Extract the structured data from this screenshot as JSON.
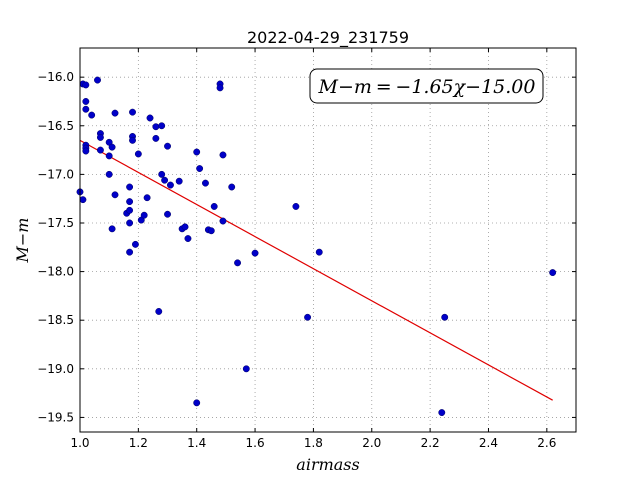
{
  "chart_data": {
    "type": "scatter",
    "title": "2022-04-29_231759",
    "xlabel": "airmass",
    "ylabel": "M−m",
    "xlim": [
      1.0,
      2.7
    ],
    "ylim": [
      -19.65,
      -15.7
    ],
    "y_inverted": true,
    "x_ticks": [
      1.0,
      1.2,
      1.4,
      1.6,
      1.8,
      2.0,
      2.2,
      2.4,
      2.6
    ],
    "x_tick_labels": [
      "1.0",
      "1.2",
      "1.4",
      "1.6",
      "1.8",
      "2.0",
      "2.2",
      "2.4",
      "2.6"
    ],
    "y_ticks": [
      -16.0,
      -16.5,
      -17.0,
      -17.5,
      -18.0,
      -18.5,
      -19.0,
      -19.5
    ],
    "y_tick_labels": [
      "−16.0",
      "−16.5",
      "−17.0",
      "−17.5",
      "−18.0",
      "−18.5",
      "−19.0",
      "−19.5"
    ],
    "grid": true,
    "annotation": "M−m = −1.65χ−15.00",
    "annotation_placement": "top-right",
    "colors": {
      "points": "#0000c8",
      "fit_line": "#e00000",
      "grid": "#999999"
    },
    "fit_line": {
      "slope": -1.65,
      "intercept": -15.0,
      "x_range": [
        1.0,
        2.62
      ]
    },
    "points": [
      {
        "x": 1.0,
        "y": -17.18
      },
      {
        "x": 1.01,
        "y": -17.26
      },
      {
        "x": 1.01,
        "y": -16.07
      },
      {
        "x": 1.02,
        "y": -16.08
      },
      {
        "x": 1.02,
        "y": -16.25
      },
      {
        "x": 1.02,
        "y": -16.33
      },
      {
        "x": 1.02,
        "y": -16.7
      },
      {
        "x": 1.02,
        "y": -16.73
      },
      {
        "x": 1.02,
        "y": -16.76
      },
      {
        "x": 1.04,
        "y": -16.39
      },
      {
        "x": 1.06,
        "y": -16.03
      },
      {
        "x": 1.07,
        "y": -16.58
      },
      {
        "x": 1.07,
        "y": -16.62
      },
      {
        "x": 1.07,
        "y": -16.75
      },
      {
        "x": 1.1,
        "y": -16.67
      },
      {
        "x": 1.1,
        "y": -16.81
      },
      {
        "x": 1.1,
        "y": -17.0
      },
      {
        "x": 1.11,
        "y": -17.56
      },
      {
        "x": 1.11,
        "y": -16.72
      },
      {
        "x": 1.12,
        "y": -16.37
      },
      {
        "x": 1.12,
        "y": -17.21
      },
      {
        "x": 1.16,
        "y": -17.4
      },
      {
        "x": 1.17,
        "y": -17.37
      },
      {
        "x": 1.17,
        "y": -17.28
      },
      {
        "x": 1.17,
        "y": -17.13
      },
      {
        "x": 1.17,
        "y": -17.5
      },
      {
        "x": 1.17,
        "y": -17.8
      },
      {
        "x": 1.18,
        "y": -16.36
      },
      {
        "x": 1.18,
        "y": -16.61
      },
      {
        "x": 1.18,
        "y": -16.65
      },
      {
        "x": 1.19,
        "y": -17.72
      },
      {
        "x": 1.2,
        "y": -16.79
      },
      {
        "x": 1.21,
        "y": -17.47
      },
      {
        "x": 1.22,
        "y": -17.42
      },
      {
        "x": 1.23,
        "y": -17.24
      },
      {
        "x": 1.24,
        "y": -16.42
      },
      {
        "x": 1.26,
        "y": -16.51
      },
      {
        "x": 1.26,
        "y": -16.63
      },
      {
        "x": 1.27,
        "y": -18.41
      },
      {
        "x": 1.28,
        "y": -17.0
      },
      {
        "x": 1.28,
        "y": -16.5
      },
      {
        "x": 1.29,
        "y": -17.06
      },
      {
        "x": 1.3,
        "y": -16.71
      },
      {
        "x": 1.3,
        "y": -17.41
      },
      {
        "x": 1.31,
        "y": -17.11
      },
      {
        "x": 1.34,
        "y": -17.07
      },
      {
        "x": 1.35,
        "y": -17.56
      },
      {
        "x": 1.36,
        "y": -17.54
      },
      {
        "x": 1.37,
        "y": -17.66
      },
      {
        "x": 1.4,
        "y": -16.77
      },
      {
        "x": 1.4,
        "y": -19.35
      },
      {
        "x": 1.41,
        "y": -16.94
      },
      {
        "x": 1.43,
        "y": -17.09
      },
      {
        "x": 1.44,
        "y": -17.57
      },
      {
        "x": 1.45,
        "y": -17.58
      },
      {
        "x": 1.46,
        "y": -17.33
      },
      {
        "x": 1.48,
        "y": -16.07
      },
      {
        "x": 1.48,
        "y": -16.11
      },
      {
        "x": 1.49,
        "y": -16.8
      },
      {
        "x": 1.49,
        "y": -17.48
      },
      {
        "x": 1.52,
        "y": -17.13
      },
      {
        "x": 1.54,
        "y": -17.91
      },
      {
        "x": 1.57,
        "y": -19.0
      },
      {
        "x": 1.6,
        "y": -17.81
      },
      {
        "x": 1.74,
        "y": -17.33
      },
      {
        "x": 1.78,
        "y": -18.47
      },
      {
        "x": 1.82,
        "y": -17.8
      },
      {
        "x": 2.24,
        "y": -19.45
      },
      {
        "x": 2.25,
        "y": -18.47
      },
      {
        "x": 2.62,
        "y": -18.01
      }
    ]
  }
}
